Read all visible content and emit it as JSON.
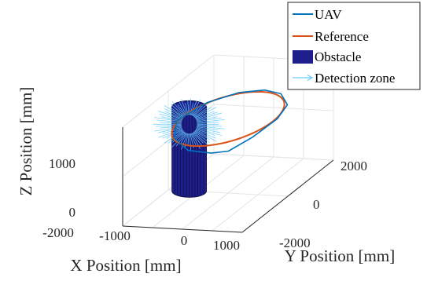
{
  "chart_data": {
    "type": "line3d",
    "title": "",
    "xlabel": "X Position [mm]",
    "ylabel": "Y Position [mm]",
    "zlabel": "Z Position [mm]",
    "x_ticks": [
      "-2000",
      "-1000",
      "0",
      "1000"
    ],
    "y_ticks": [
      "2000",
      "0",
      "-2000"
    ],
    "z_ticks": [
      "1000",
      "0"
    ],
    "xlim": [
      -2000,
      2000
    ],
    "ylim": [
      -2000,
      2000
    ],
    "zlim": [
      0,
      2000
    ],
    "grid": true,
    "legend_position": "top-right",
    "legend": [
      {
        "label": "UAV",
        "kind": "line",
        "color": "#0072BD"
      },
      {
        "label": "Reference",
        "kind": "line",
        "color": "#D95319"
      },
      {
        "label": "Obstacle",
        "kind": "patch",
        "color": "#1E1E8C"
      },
      {
        "label": "Detection zone",
        "kind": "arrow",
        "color": "#66CCFF"
      }
    ],
    "series": [
      {
        "name": "Reference",
        "color": "#D95319",
        "shape": "circle",
        "center": [
          0,
          0
        ],
        "radius_mm": 1500,
        "z": 1500
      },
      {
        "name": "UAV",
        "color": "#0072BD",
        "points": [
          [
            -1500,
            0,
            1500
          ],
          [
            -1300,
            800,
            1500
          ],
          [
            -700,
            1400,
            1500
          ],
          [
            0,
            1600,
            1500
          ],
          [
            700,
            1400,
            1520
          ],
          [
            1300,
            900,
            1500
          ],
          [
            1500,
            200,
            1480
          ],
          [
            1200,
            -500,
            1350
          ],
          [
            700,
            -900,
            1200
          ],
          [
            200,
            -1000,
            1180
          ],
          [
            -500,
            -1100,
            1250
          ],
          [
            -1100,
            -900,
            1400
          ],
          [
            -1500,
            -300,
            1500
          ],
          [
            -1500,
            0,
            1500
          ]
        ]
      }
    ],
    "obstacle": {
      "type": "cylinder",
      "color": "#1E1E8C",
      "center": [
        -1300,
        0
      ],
      "radius_mm": 300,
      "height_mm": 1700
    },
    "detection_zone_color": "#66CCFF"
  }
}
